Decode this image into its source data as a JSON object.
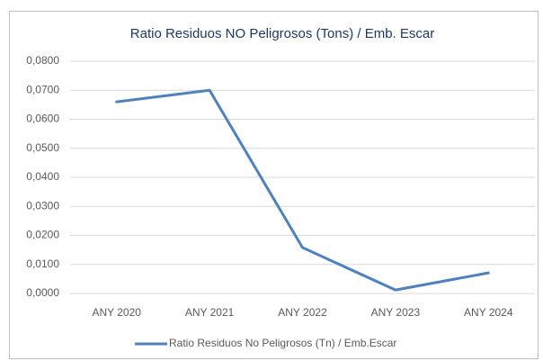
{
  "chart_data": {
    "type": "line",
    "title": "Ratio Residuos NO Peligrosos (Tons) / Emb. Escar",
    "categories": [
      "ANY 2020",
      "ANY 2021",
      "ANY 2022",
      "ANY 2023",
      "ANY 2024"
    ],
    "series": [
      {
        "name": "Ratio Residuos No Peligrosos (Tn) / Emb.Escar",
        "color": "#4f81bd",
        "values": [
          0.066,
          0.07,
          0.0158,
          0.0012,
          0.0071
        ]
      }
    ],
    "ylim": [
      0,
      0.08
    ],
    "yticks": [
      {
        "value": 0,
        "label": "0,0000"
      },
      {
        "value": 0.01,
        "label": "0,0100"
      },
      {
        "value": 0.02,
        "label": "0,0200"
      },
      {
        "value": 0.03,
        "label": "0,0300"
      },
      {
        "value": 0.04,
        "label": "0,0400"
      },
      {
        "value": 0.05,
        "label": "0,0500"
      },
      {
        "value": 0.06,
        "label": "0,0600"
      },
      {
        "value": 0.07,
        "label": "0,0700"
      },
      {
        "value": 0.08,
        "label": "0,0800"
      }
    ],
    "grid": true,
    "legend": "bottom"
  }
}
